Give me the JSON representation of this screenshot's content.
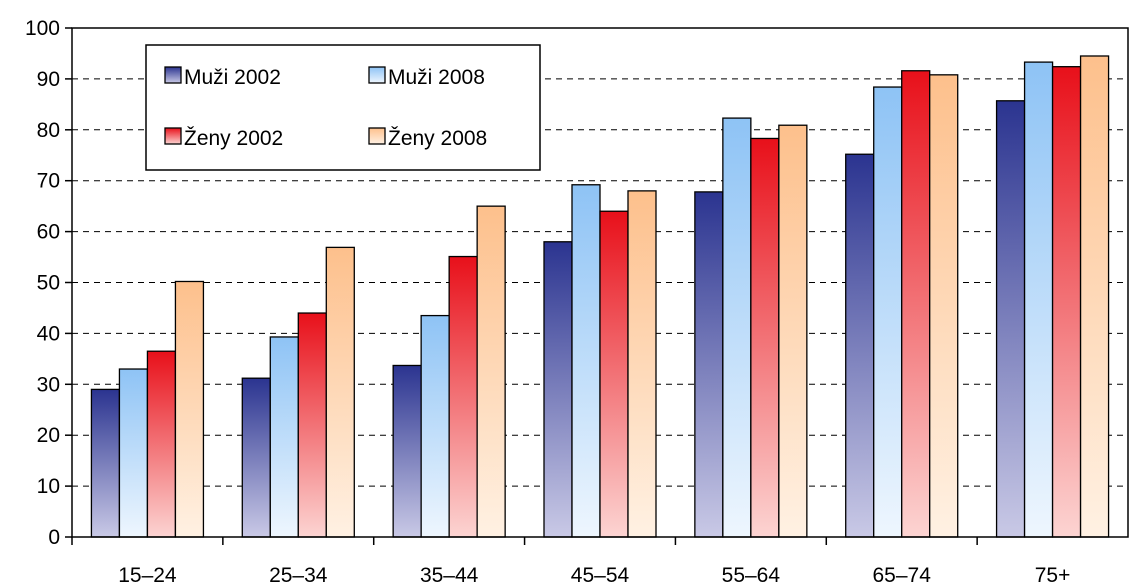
{
  "chart_data": {
    "type": "bar",
    "categories": [
      "15–24",
      "25–34",
      "35–44",
      "45–54",
      "55–64",
      "65–74",
      "75+"
    ],
    "series": [
      {
        "name": "Muži 2002",
        "values": [
          29,
          31.2,
          33.7,
          58,
          67.8,
          75.2,
          85.7
        ],
        "color_top": "#2B3490",
        "color_bottom": "#C9C9E6"
      },
      {
        "name": "Muži 2008",
        "values": [
          33,
          39.3,
          43.5,
          69.2,
          82.3,
          88.4,
          93.3
        ],
        "color_top": "#8EC3F5",
        "color_bottom": "#EEF6FE"
      },
      {
        "name": "Ženy 2002",
        "values": [
          36.5,
          44,
          55.1,
          64,
          78.3,
          91.6,
          92.4
        ],
        "color_top": "#E8101A",
        "color_bottom": "#FCD4D2"
      },
      {
        "name": "Ženy 2008",
        "values": [
          50.2,
          56.9,
          65,
          68,
          80.9,
          90.8,
          94.5
        ],
        "color_top": "#FDC08C",
        "color_bottom": "#FFF1E3"
      }
    ],
    "yticks": [
      "0",
      "10",
      "20",
      "30",
      "40",
      "50",
      "60",
      "70",
      "80",
      "90",
      "100"
    ],
    "ylim": [
      0,
      100
    ],
    "grid": "horizontal dashed",
    "legend_position": "top-left",
    "title": "",
    "xlabel": "",
    "ylabel": ""
  }
}
